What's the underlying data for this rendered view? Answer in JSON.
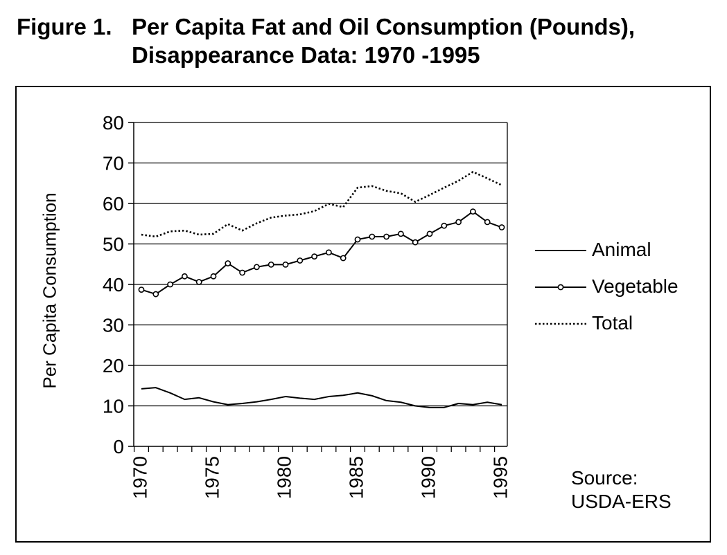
{
  "figure": {
    "number_label": "Figure 1.",
    "title_line1": "Per Capita Fat and Oil Consumption (Pounds),",
    "title_line2": "Disappearance Data: 1970 -1995"
  },
  "source": {
    "line1": "Source:",
    "line2": "USDA-ERS"
  },
  "colors": {
    "line": "#000000",
    "grid": "#000000",
    "background": "#ffffff"
  },
  "chart_data": {
    "type": "line",
    "title": "Per Capita Fat and Oil Consumption (Pounds), Disappearance Data: 1970 -1995",
    "xlabel": "",
    "ylabel": "Per Capita Consumption",
    "xlim": [
      1970,
      1996
    ],
    "ylim": [
      0,
      80
    ],
    "yticks": [
      0,
      10,
      20,
      30,
      40,
      50,
      60,
      70,
      80
    ],
    "xtick_labels": [
      "1970",
      "1975",
      "1980",
      "1985",
      "1990",
      "1995"
    ],
    "grid": "horizontal",
    "legend_position": "right",
    "x": [
      1970,
      1971,
      1972,
      1973,
      1974,
      1975,
      1976,
      1977,
      1978,
      1979,
      1980,
      1981,
      1982,
      1983,
      1984,
      1985,
      1986,
      1987,
      1988,
      1989,
      1990,
      1991,
      1992,
      1993,
      1994,
      1995
    ],
    "series": [
      {
        "name": "Animal",
        "style": "solid",
        "values": [
          14.2,
          14.5,
          13.2,
          11.6,
          12.0,
          11.0,
          10.3,
          10.6,
          11.0,
          11.6,
          12.3,
          11.9,
          11.6,
          12.3,
          12.6,
          13.2,
          12.5,
          11.3,
          10.9,
          10.0,
          9.6,
          9.6,
          10.6,
          10.3,
          10.9,
          10.3
        ]
      },
      {
        "name": "Vegetable",
        "style": "solid-circle-markers",
        "values": [
          38.7,
          37.6,
          40.0,
          42.0,
          40.6,
          42.0,
          45.2,
          42.9,
          44.3,
          44.9,
          44.9,
          45.9,
          46.9,
          47.9,
          46.5,
          51.1,
          51.8,
          51.8,
          52.5,
          50.4,
          52.5,
          54.5,
          55.4,
          58.0,
          55.4,
          54.1
        ]
      },
      {
        "name": "Total",
        "style": "dotted",
        "values": [
          52.3,
          51.8,
          53.1,
          53.3,
          52.3,
          52.5,
          54.9,
          53.3,
          55.1,
          56.5,
          57.0,
          57.3,
          58.1,
          59.9,
          59.1,
          63.9,
          64.3,
          63.1,
          62.5,
          60.4,
          62.1,
          63.9,
          65.6,
          67.8,
          66.2,
          64.5
        ]
      }
    ]
  }
}
